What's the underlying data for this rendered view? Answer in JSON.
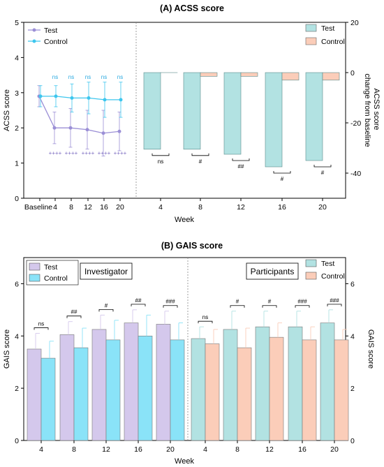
{
  "chart_data": [
    {
      "type": "line",
      "title": "(A)  ACSS score",
      "xlabel": "Week",
      "ylabel": "ACSS score",
      "ylim": [
        0,
        5
      ],
      "yticks": [
        "0",
        "1",
        "2",
        "3",
        "4",
        "5"
      ],
      "x": [
        "Baseline",
        "4",
        "8",
        "12",
        "16",
        "20"
      ],
      "series": [
        {
          "name": "Test",
          "color": "#9b8fd6",
          "values": [
            2.9,
            2.0,
            2.0,
            1.95,
            1.85,
            1.9
          ],
          "err": [
            0.3,
            0.45,
            0.55,
            0.55,
            0.65,
            0.55
          ]
        },
        {
          "name": "Control",
          "color": "#3dc6ee",
          "values": [
            2.9,
            2.9,
            2.85,
            2.85,
            2.8,
            2.8
          ],
          "err": [
            0.3,
            0.3,
            0.4,
            0.45,
            0.5,
            0.5
          ]
        }
      ],
      "top_labels": [
        "ns",
        "ns",
        "ns",
        "ns",
        "ns"
      ],
      "bottom_labels": [
        "++++",
        "++++",
        "++++",
        "++++",
        "++++"
      ],
      "legend": "top-left",
      "grid": false
    },
    {
      "type": "bar",
      "ylabel": "ACSS score change from baseline",
      "ylim": [
        -50,
        20
      ],
      "yticks": [
        "-40",
        "-20",
        "0",
        "20"
      ],
      "categories": [
        "4",
        "8",
        "12",
        "16",
        "20"
      ],
      "series": [
        {
          "name": "Test",
          "color": "#b2e2e2",
          "values": [
            -30.5,
            -30.5,
            -32.5,
            -37.5,
            -35
          ]
        },
        {
          "name": "Control",
          "color": "#fbcdb9",
          "values": [
            0,
            -1.5,
            -1.5,
            -3,
            -3
          ]
        }
      ],
      "significance": [
        "ns",
        "#",
        "##",
        "#",
        "#"
      ],
      "legend": "top-right",
      "grid": false
    },
    {
      "type": "bar",
      "title": "(B)  GAIS score",
      "xlabel": "Week",
      "ylabel": "GAIS score",
      "ylim": [
        0,
        7
      ],
      "yticks": [
        "0",
        "2",
        "4",
        "6"
      ],
      "categories": [
        "4",
        "8",
        "12",
        "16",
        "20",
        "4",
        "8",
        "12",
        "16",
        "20"
      ],
      "groups": [
        {
          "label": "Investigator",
          "series": [
            {
              "name": "Test",
              "color": "#d4c8ec",
              "values": [
                3.5,
                4.05,
                4.25,
                4.5,
                4.45
              ],
              "err": [
                0.6,
                0.5,
                0.55,
                0.5,
                0.5
              ]
            },
            {
              "name": "Control",
              "color": "#8ae3f8",
              "values": [
                3.15,
                3.55,
                3.85,
                4.0,
                3.85
              ],
              "err": [
                0.65,
                0.75,
                0.75,
                0.8,
                0.65
              ]
            }
          ],
          "significance": [
            "ns",
            "##",
            "#",
            "##",
            "###"
          ]
        },
        {
          "label": "Participants",
          "series": [
            {
              "name": "Test",
              "color": "#b2e2e2",
              "values": [
                3.9,
                4.25,
                4.35,
                4.35,
                4.5
              ],
              "err": [
                0.45,
                0.7,
                0.6,
                0.6,
                0.5
              ]
            },
            {
              "name": "Control",
              "color": "#fbcdb9",
              "values": [
                3.7,
                3.55,
                3.95,
                3.85,
                3.85
              ],
              "err": [
                0.55,
                0.75,
                0.55,
                0.5,
                0.4
              ]
            }
          ],
          "significance": [
            "ns",
            "#",
            "#",
            "###",
            "###"
          ]
        }
      ],
      "right_ylabel": "GAIS score",
      "grid": false
    }
  ]
}
